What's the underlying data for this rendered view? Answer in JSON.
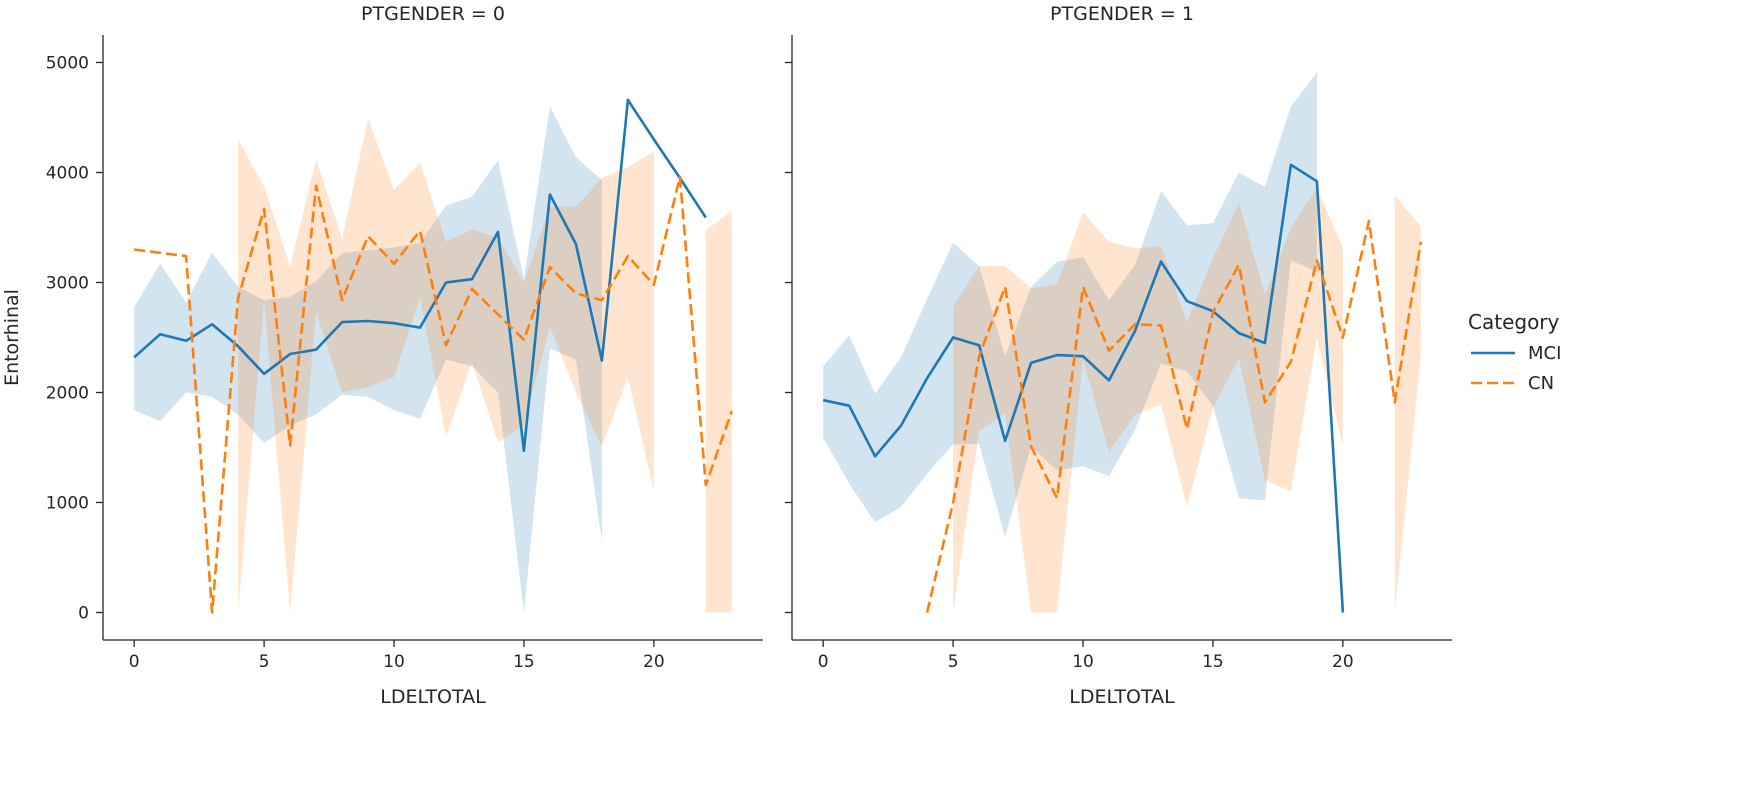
{
  "chart_data": {
    "type": "line",
    "panels": [
      {
        "title": "PTGENDER = 0",
        "xlabel": "LDELTOTAL",
        "ylabel": "Entorhinal",
        "series": [
          {
            "name": "MCI",
            "x": [
              0,
              1,
              2,
              3,
              4,
              5,
              6,
              7,
              8,
              9,
              10,
              11,
              12,
              13,
              14,
              15,
              16,
              17,
              18,
              19,
              20,
              21,
              22
            ],
            "y": [
              2320,
              2530,
              2470,
              2620,
              2420,
              2170,
              2350,
              2390,
              2640,
              2650,
              2630,
              2590,
              3000,
              3030,
              3460,
              1470,
              3800,
              3350,
              2290,
              4660,
              4300,
              3950,
              3590
            ],
            "ci_low": [
              1840,
              1740,
              2000,
              1960,
              1800,
              1540,
              1700,
              1800,
              1980,
              1960,
              1840,
              1760,
              2300,
              2240,
              2000,
              0,
              2400,
              2300,
              650,
              null,
              null,
              null,
              null
            ],
            "ci_high": [
              2780,
              3170,
              2820,
              3270,
              2960,
              2840,
              2870,
              3010,
              3270,
              3290,
              3320,
              3360,
              3700,
              3780,
              4110,
              3030,
              4600,
              4140,
              3930,
              null,
              null,
              null,
              null
            ]
          },
          {
            "name": "CN",
            "x": [
              0,
              2,
              3,
              4,
              5,
              6,
              7,
              8,
              9,
              10,
              11,
              12,
              13,
              14,
              15,
              16,
              17,
              18,
              19,
              20,
              21,
              22,
              23
            ],
            "y": [
              3300,
              3240,
              0,
              2860,
              3670,
              1520,
              3880,
              2840,
              3420,
              3170,
              3470,
              2430,
              2940,
              2710,
              2480,
              3140,
              2900,
              2840,
              3240,
              2980,
              3960,
              1160,
              1830
            ],
            "ci_low": [
              null,
              null,
              null,
              0,
              2850,
              0,
              2730,
              2000,
              2050,
              2140,
              2870,
              1600,
              2270,
              1550,
              1700,
              2600,
              2000,
              1510,
              2140,
              1100,
              null,
              0,
              0
            ],
            "ci_high": [
              null,
              null,
              null,
              4300,
              3870,
              3150,
              4120,
              3400,
              4490,
              3840,
              4090,
              3370,
              3480,
              3410,
              3000,
              3690,
              3690,
              3950,
              4050,
              4190,
              null,
              3480,
              3650
            ]
          }
        ]
      },
      {
        "title": "PTGENDER = 1",
        "xlabel": "LDELTOTAL",
        "ylabel": "",
        "series": [
          {
            "name": "MCI",
            "x": [
              0,
              1,
              2,
              3,
              4,
              5,
              6,
              7,
              8,
              9,
              10,
              11,
              12,
              13,
              14,
              15,
              16,
              17,
              18,
              19,
              20
            ],
            "y": [
              1930,
              1880,
              1420,
              1700,
              2130,
              2500,
              2430,
              1560,
              2270,
              2340,
              2330,
              2110,
              2560,
              3190,
              2830,
              2740,
              2540,
              2450,
              4070,
              3920,
              0
            ],
            "ci_low": [
              1590,
              1170,
              820,
              960,
              1260,
              1530,
              1530,
              690,
              1510,
              1290,
              1330,
              1240,
              1660,
              2260,
              2190,
              1880,
              1040,
              1020,
              3200,
              3100,
              null
            ],
            "ci_high": [
              2240,
              2520,
              1990,
              2320,
              2850,
              3360,
              3150,
              2330,
              2960,
              3190,
              3230,
              2840,
              3160,
              3830,
              3520,
              3540,
              4000,
              3870,
              4600,
              4910,
              null
            ]
          },
          {
            "name": "CN",
            "x": [
              4,
              5,
              6,
              7,
              8,
              9,
              10,
              11,
              12,
              13,
              14,
              15,
              16,
              17,
              18,
              19,
              20,
              21,
              22,
              23
            ],
            "y": [
              0,
              1000,
              2330,
              2960,
              1510,
              1040,
              2960,
              2380,
              2620,
              2610,
              1670,
              2730,
              3160,
              1910,
              2280,
              3200,
              2500,
              3560,
              1910,
              3370
            ],
            "ci_low": [
              null,
              0,
              1650,
              1810,
              0,
              0,
              2300,
              1460,
              1800,
              1890,
              960,
              1860,
              2310,
              1200,
              1100,
              2500,
              1510,
              null,
              0,
              2330
            ],
            "ci_high": [
              null,
              2780,
              3150,
              3150,
              2950,
              2980,
              3640,
              3370,
              3310,
              3330,
              2640,
              3220,
              3720,
              2890,
              3500,
              3860,
              3320,
              null,
              3790,
              3510
            ]
          }
        ]
      }
    ],
    "xlim": [
      -1.2,
      24.2
    ],
    "ylim": [
      -250,
      5250
    ],
    "xticks": [
      0,
      5,
      10,
      15,
      20
    ],
    "yticks": [
      0,
      1000,
      2000,
      3000,
      4000,
      5000
    ],
    "sharey": true,
    "grid": false,
    "legend": {
      "title": "Category",
      "placement": "right",
      "entries": [
        "MCI",
        "CN"
      ]
    }
  },
  "colors": {
    "MCI": "#1f77b4",
    "CN": "#ff7f0e",
    "MCI_band": "#1f77b4",
    "CN_band": "#ff7f0e",
    "axis": "#262626"
  }
}
